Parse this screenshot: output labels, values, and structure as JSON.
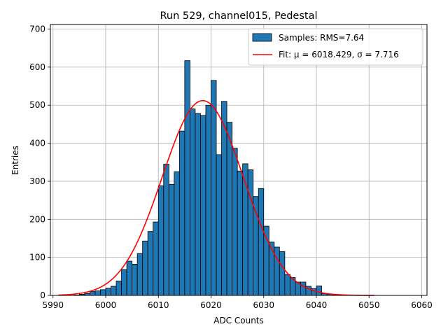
{
  "chart_data": {
    "type": "bar",
    "title": "Run 529, channel015, Pedestal",
    "xlabel": "ADC Counts",
    "ylabel": "Entries",
    "xlim": [
      5989.5,
      6061
    ],
    "ylim": [
      0,
      712
    ],
    "xticks": [
      5990,
      6000,
      6010,
      6020,
      6030,
      6040,
      6050,
      6060
    ],
    "yticks": [
      0,
      100,
      200,
      300,
      400,
      500,
      600,
      700
    ],
    "grid": true,
    "legend_position": "top-right",
    "bin_width": 1,
    "bin_start": 5991,
    "values": [
      0,
      0,
      0,
      1,
      3,
      5,
      10,
      12,
      15,
      19,
      24,
      38,
      68,
      90,
      82,
      110,
      143,
      168,
      193,
      288,
      345,
      292,
      325,
      432,
      617,
      490,
      478,
      473,
      500,
      565,
      370,
      510,
      455,
      387,
      327,
      346,
      330,
      260,
      281,
      182,
      140,
      127,
      115,
      55,
      47,
      35,
      35,
      24,
      18,
      25,
      5,
      3,
      2,
      1,
      1,
      1,
      0,
      0,
      0,
      0
    ],
    "bar_color": "#1f77b4",
    "fit": {
      "mu": 6018.429,
      "sigma": 7.716,
      "amplitude": 512,
      "x_range": [
        5991,
        6051
      ],
      "color": "#ff0000"
    },
    "legend": [
      {
        "label": "Samples: RMS=7.64",
        "kind": "patch",
        "color": "#1f77b4"
      },
      {
        "label": "Fit: μ = 6018.429, σ = 7.716",
        "kind": "line",
        "color": "#ff0000"
      }
    ]
  }
}
